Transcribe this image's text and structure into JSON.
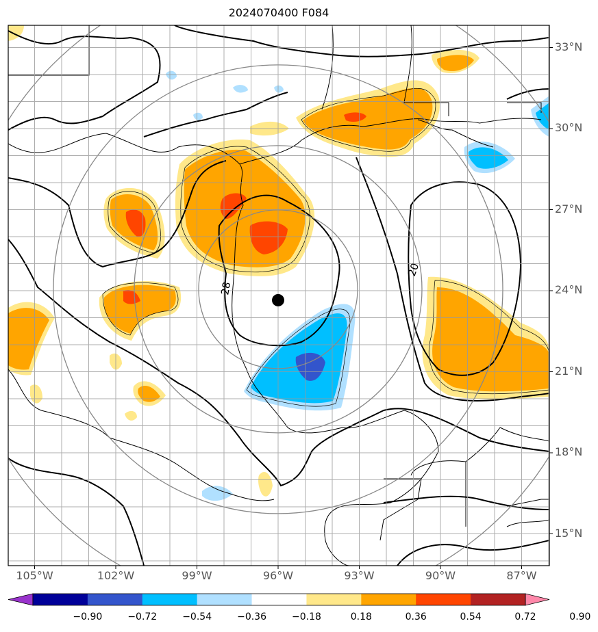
{
  "title": "2024070400 F084",
  "lon_labels": [
    {
      "lon": -105,
      "label": "105°W"
    },
    {
      "lon": -102,
      "label": "102°W"
    },
    {
      "lon": -99,
      "label": "99°W"
    },
    {
      "lon": -96,
      "label": "96°W"
    },
    {
      "lon": -93,
      "label": "93°W"
    },
    {
      "lon": -90,
      "label": "90°W"
    },
    {
      "lon": -87,
      "label": "87°W"
    }
  ],
  "lat_labels": [
    {
      "lat": 33,
      "label": "33°N"
    },
    {
      "lat": 30,
      "label": "30°N"
    },
    {
      "lat": 27,
      "label": "27°N"
    },
    {
      "lat": 24,
      "label": "24°N"
    },
    {
      "lat": 21,
      "label": "21°N"
    },
    {
      "lat": 18,
      "label": "18°N"
    },
    {
      "lat": 15,
      "label": "15°N"
    }
  ],
  "contour_labels": [
    "20",
    "28"
  ],
  "storm_center": {
    "lon": -96,
    "lat": 23.8
  },
  "colorbar": {
    "ticks": [
      "−0.90",
      "−0.72",
      "−0.54",
      "−0.36",
      "−0.18",
      "0.18",
      "0.36",
      "0.54",
      "0.72",
      "0.90"
    ],
    "colors": [
      "#9933cc",
      "#000099",
      "#3355cc",
      "#00bfff",
      "#b0e0ff",
      "#ffffff",
      "#ffe88a",
      "#ffa500",
      "#ff4500",
      "#b22222",
      "#ff88aa"
    ]
  },
  "colors": {
    "orange": "#ffa500",
    "lightyellow": "#ffe88a",
    "red": "#ff4500",
    "cyan": "#00bfff",
    "lightblue": "#b0e0ff",
    "blue": "#3355cc",
    "grid": "#999999",
    "range_ring": "#888888"
  }
}
